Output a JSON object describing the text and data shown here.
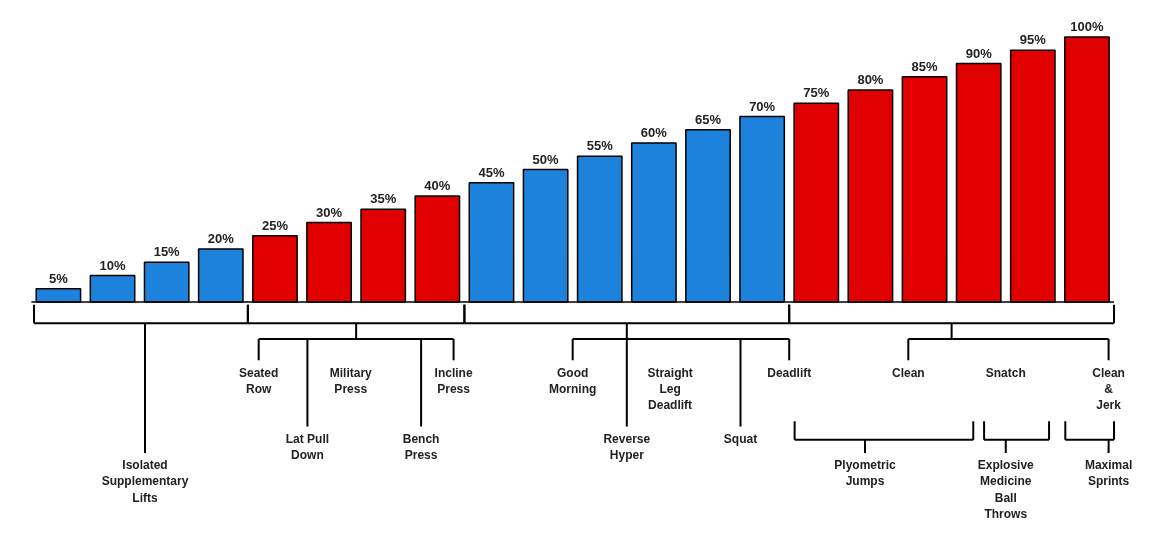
{
  "chart_data": {
    "type": "bar",
    "categories": [
      null,
      null,
      null,
      null,
      null,
      null,
      null,
      null,
      null,
      null,
      null,
      null,
      null,
      null,
      null,
      null,
      null,
      null,
      null,
      null
    ],
    "values": [
      5,
      10,
      15,
      20,
      25,
      30,
      35,
      40,
      45,
      50,
      55,
      60,
      65,
      70,
      75,
      80,
      85,
      90,
      95,
      100
    ],
    "value_labels": [
      "5%",
      "10%",
      "15%",
      "20%",
      "25%",
      "30%",
      "35%",
      "40%",
      "45%",
      "50%",
      "55%",
      "60%",
      "65%",
      "70%",
      "75%",
      "80%",
      "85%",
      "90%",
      "95%",
      "100%"
    ],
    "colors": [
      "#1c82dc",
      "#1c82dc",
      "#1c82dc",
      "#1c82dc",
      "#e00000",
      "#e00000",
      "#e00000",
      "#e00000",
      "#1c82dc",
      "#1c82dc",
      "#1c82dc",
      "#1c82dc",
      "#1c82dc",
      "#1c82dc",
      "#e00000",
      "#e00000",
      "#e00000",
      "#e00000",
      "#e00000",
      "#e00000"
    ],
    "annotations": [
      "Isolated\nSupplementary\nLifts",
      "Seated\nRow",
      "Military\nPress",
      "Incline\nPress",
      "Lat Pull\nDown",
      "Bench\nPress",
      "Good\nMorning",
      "Straight\nLeg\nDeadlift",
      "Deadlift",
      "Reverse\nHyper",
      "Squat",
      "Clean",
      "Snatch",
      "Clean\n&\nJerk",
      "Plyometric\nJumps",
      "Explosive\nMedicine\nBall\nThrows",
      "Maximal\nSprints"
    ]
  }
}
